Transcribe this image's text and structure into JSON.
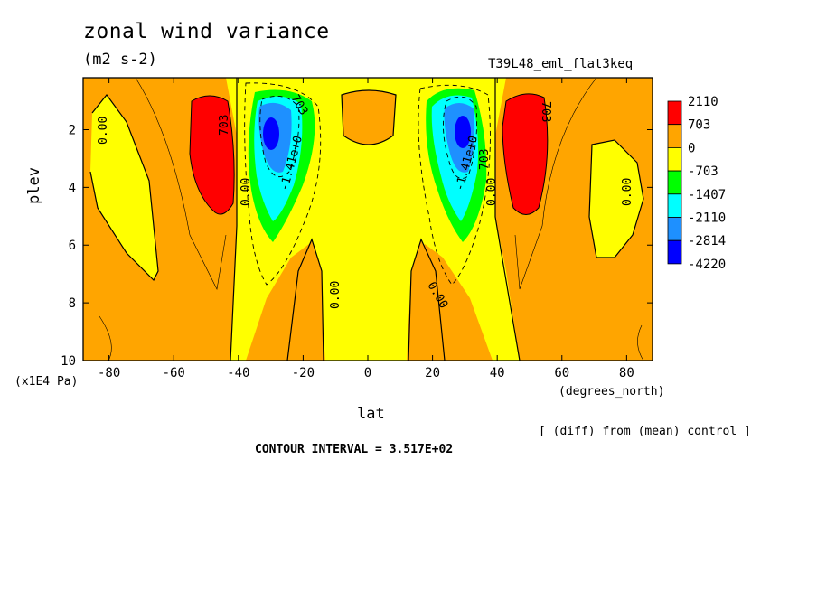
{
  "header": {
    "title": "zonal wind variance",
    "units": "(m2 s-2)",
    "experiment": "T39L48_eml_flat3keq"
  },
  "footer": {
    "diff_note": "[ (diff) from (mean) control ]",
    "contour_interval": "CONTOUR INTERVAL = 3.517E+02"
  },
  "chart_data": {
    "type": "heatmap",
    "title": "zonal wind variance",
    "units": "(m2 s-2)",
    "xlabel": "lat",
    "x_unit": "(degrees_north)",
    "ylabel": "plev",
    "y_unit": "(x1E4 Pa)",
    "xlim": [
      -88,
      88
    ],
    "ylim": [
      10,
      0.2
    ],
    "x_ticks": [
      "-80",
      "-60",
      "-40",
      "-20",
      "0",
      "20",
      "40",
      "60",
      "80"
    ],
    "y_ticks": [
      "2",
      "4",
      "6",
      "8",
      "10"
    ],
    "contour_interval": 351.7,
    "legend": {
      "position": "right",
      "levels": [
        "2110",
        "703",
        "0",
        "-703",
        "-1407",
        "-2110",
        "-2814",
        "-4220"
      ],
      "colors": [
        "#ff0000",
        "#ffa500",
        "#ffff00",
        "#00ff00",
        "#00ffff",
        "#1e90ff",
        "#0000ff"
      ]
    },
    "contour_labels": [
      "0.00",
      "0.00",
      "0.00",
      "0.00",
      "0.00",
      "0.00",
      "703",
      "703",
      "703",
      "703",
      "-1.41e+0",
      "-1.41e+0"
    ],
    "features": [
      {
        "name": "SH upper-tropospheric maximum",
        "lat": -47,
        "plev": 2.5,
        "value": 2110
      },
      {
        "name": "NH upper-tropospheric maximum",
        "lat": 47,
        "plev": 2.5,
        "value": 2110
      },
      {
        "name": "SH jet-core minimum",
        "lat": -30,
        "plev": 2.0,
        "value": -4220
      },
      {
        "name": "NH jet-core minimum",
        "lat": 30,
        "plev": 2.0,
        "value": -4220
      }
    ]
  }
}
